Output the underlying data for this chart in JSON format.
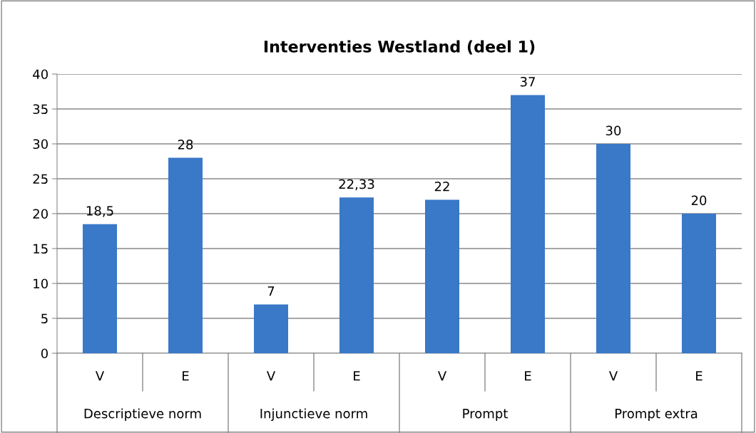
{
  "chart_data": {
    "type": "bar",
    "title": "Interventies Westland (deel 1)",
    "categories": [
      "V",
      "E",
      "V",
      "E",
      "V",
      "E",
      "V",
      "E"
    ],
    "values": [
      18.5,
      28,
      7,
      22.33,
      22,
      37,
      30,
      20
    ],
    "value_labels": [
      "18,5",
      "28",
      "7",
      "22,33",
      "22",
      "37",
      "30",
      "20"
    ],
    "color": "#3a78c8",
    "ylim": [
      0,
      40
    ],
    "yticks": [
      0,
      5,
      10,
      15,
      20,
      25,
      30,
      35,
      40
    ],
    "grid": "y",
    "annotations": [
      "Descriptieve norm",
      "Injunctieve norm",
      "Prompt",
      "Prompt extra"
    ]
  }
}
